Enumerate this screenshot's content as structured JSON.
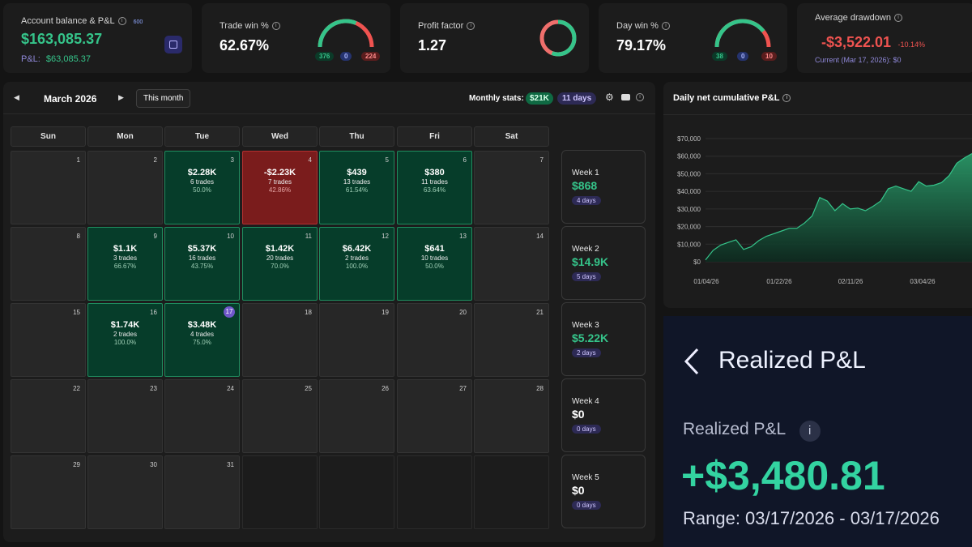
{
  "stats": {
    "balance": {
      "label": "Account balance & P&L",
      "badge": "600",
      "value": "$163,085.37",
      "pnl_label": "P&L:",
      "pnl_value": "$63,085.37"
    },
    "trade_win": {
      "label": "Trade win %",
      "value": "62.67%",
      "wins": "376",
      "even": "0",
      "losses": "224",
      "win_fraction": 0.6267
    },
    "profit_factor": {
      "label": "Profit factor",
      "value": "1.27",
      "fraction": 0.56
    },
    "day_win": {
      "label": "Day win %",
      "value": "79.17%",
      "wins": "38",
      "even": "0",
      "losses": "10",
      "win_fraction": 0.7917
    },
    "drawdown": {
      "label": "Average drawdown",
      "value": "-$3,522.01",
      "pct": "-10.14%",
      "current": "Current (Mar 17, 2026): $0"
    }
  },
  "calendar": {
    "month": "March 2026",
    "this_month": "This month",
    "monthly_label": "Monthly stats:",
    "monthly_value": "$21K",
    "monthly_days": "11 days",
    "weekdays": [
      "Sun",
      "Mon",
      "Tue",
      "Wed",
      "Thu",
      "Fri",
      "Sat"
    ],
    "rows": [
      [
        {
          "d": "1"
        },
        {
          "d": "2"
        },
        {
          "d": "3",
          "v": "$2.28K",
          "t": "6 trades",
          "p": "50.0%",
          "s": "g"
        },
        {
          "d": "4",
          "v": "-$2.23K",
          "t": "7 trades",
          "p": "42.86%",
          "s": "r"
        },
        {
          "d": "5",
          "v": "$439",
          "t": "13 trades",
          "p": "61.54%",
          "s": "g"
        },
        {
          "d": "6",
          "v": "$380",
          "t": "11 trades",
          "p": "63.64%",
          "s": "g"
        },
        {
          "d": "7"
        }
      ],
      [
        {
          "d": "8"
        },
        {
          "d": "9",
          "v": "$1.1K",
          "t": "3 trades",
          "p": "66.67%",
          "s": "g"
        },
        {
          "d": "10",
          "v": "$5.37K",
          "t": "16 trades",
          "p": "43.75%",
          "s": "g"
        },
        {
          "d": "11",
          "v": "$1.42K",
          "t": "20 trades",
          "p": "70.0%",
          "s": "g"
        },
        {
          "d": "12",
          "v": "$6.42K",
          "t": "2 trades",
          "p": "100.0%",
          "s": "g"
        },
        {
          "d": "13",
          "v": "$641",
          "t": "10 trades",
          "p": "50.0%",
          "s": "g"
        },
        {
          "d": "14"
        }
      ],
      [
        {
          "d": "15"
        },
        {
          "d": "16",
          "v": "$1.74K",
          "t": "2 trades",
          "p": "100.0%",
          "s": "g"
        },
        {
          "d": "17",
          "v": "$3.48K",
          "t": "4 trades",
          "p": "75.0%",
          "s": "g",
          "today": true
        },
        {
          "d": "18"
        },
        {
          "d": "19"
        },
        {
          "d": "20"
        },
        {
          "d": "21"
        }
      ],
      [
        {
          "d": "22"
        },
        {
          "d": "23"
        },
        {
          "d": "24"
        },
        {
          "d": "25"
        },
        {
          "d": "26"
        },
        {
          "d": "27"
        },
        {
          "d": "28"
        }
      ],
      [
        {
          "d": "29"
        },
        {
          "d": "30"
        },
        {
          "d": "31"
        },
        {
          "s": "e"
        },
        {
          "s": "e"
        },
        {
          "s": "e"
        },
        {
          "s": "e"
        }
      ]
    ],
    "weeks": [
      {
        "t": "Week 1",
        "v": "$868",
        "d": "4 days",
        "pos": true
      },
      {
        "t": "Week 2",
        "v": "$14.9K",
        "d": "5 days",
        "pos": true
      },
      {
        "t": "Week 3",
        "v": "$5.22K",
        "d": "2 days",
        "pos": true
      },
      {
        "t": "Week 4",
        "v": "$0",
        "d": "0 days",
        "pos": false
      },
      {
        "t": "Week 5",
        "v": "$0",
        "d": "0 days",
        "pos": false
      }
    ]
  },
  "chart": {
    "title": "Daily net cumulative P&L",
    "chart_data": {
      "type": "area",
      "ylim": [
        0,
        70000
      ],
      "yticks": [
        "$0",
        "$10,000",
        "$20,000",
        "$30,000",
        "$40,000",
        "$50,000",
        "$60,000",
        "$70,000"
      ],
      "xticks": [
        "01/04/26",
        "01/22/26",
        "02/11/26",
        "03/04/26"
      ],
      "series": [
        {
          "values": [
            1000,
            6500,
            9500,
            11000,
            12500,
            7000,
            8500,
            12000,
            14500,
            16000,
            17500,
            19000,
            19000,
            22000,
            26000,
            36500,
            34500,
            29000,
            33000,
            30000,
            30500,
            29000,
            31500,
            34500,
            41500,
            43000,
            41500,
            40000,
            45500,
            43000,
            43500,
            45000,
            49000,
            56000,
            59000,
            61500
          ]
        }
      ],
      "colors": {
        "line": "#35c48a",
        "area_top": "#2a9c6a",
        "area_bottom": "#0d2a1f"
      }
    }
  },
  "realized": {
    "header": "Realized P&L",
    "label": "Realized P&L",
    "value": "+$3,480.81",
    "range": "Range: 03/17/2026 - 03/17/2026"
  }
}
